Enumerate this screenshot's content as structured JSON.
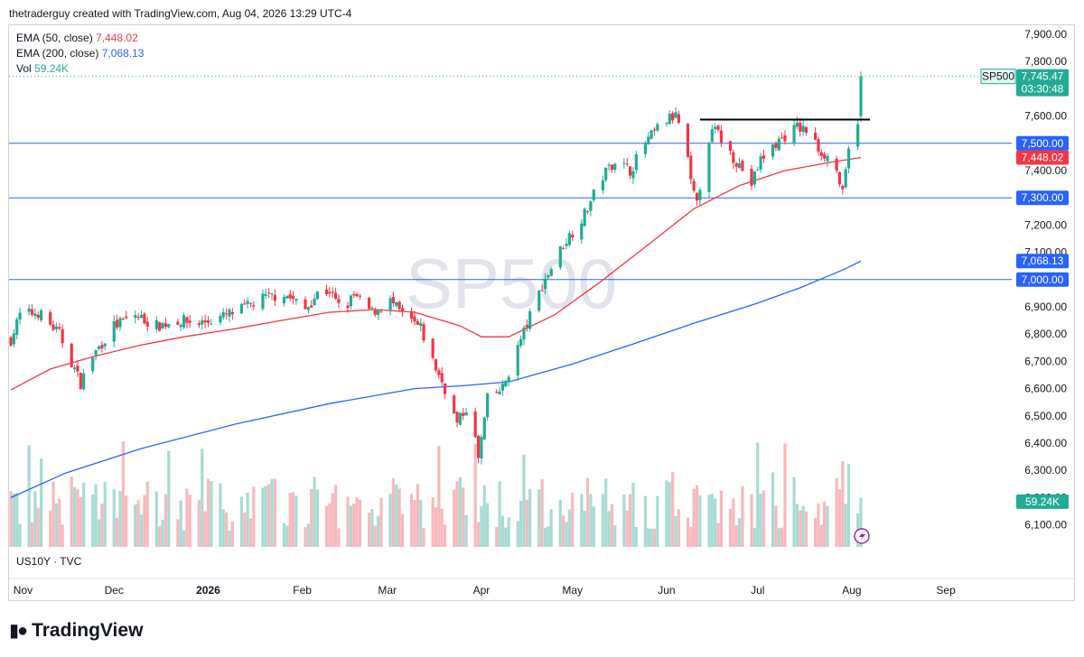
{
  "attribution": "thetraderguy created with TradingView.com, Aug 04, 2026 13:29 UTC-4",
  "legend": {
    "ema50_label": "EMA (50, close)",
    "ema50_value": "7,448.02",
    "ema200_label": "EMA (200, close)",
    "ema200_value": "7,068.13",
    "vol_label": "Vol",
    "vol_value": "59.24K"
  },
  "watermark": "SP500",
  "symbol_footer": "US10Y · TVC",
  "logo_text": "TradingView",
  "colors": {
    "up": "#22ab94",
    "down": "#f23645",
    "ema50": "#f23645",
    "ema200": "#2962ff",
    "hline": "#2962ff",
    "resistance": "#000000",
    "vol_up": "#a8dbd3",
    "vol_down": "#f7b9be"
  },
  "chart_data": {
    "type": "candlestick",
    "y_ticks": [
      "7,900.00",
      "7,800.00",
      "7,700.00",
      "7,600.00",
      "7,500.00",
      "7,400.00",
      "7,300.00",
      "7,200.00",
      "7,100.00",
      "7,000.00",
      "6,900.00",
      "6,800.00",
      "6,700.00",
      "6,600.00",
      "6,500.00",
      "6,400.00",
      "6,300.00",
      "6,200.00",
      "6,100.00"
    ],
    "ylim": [
      6050,
      7950
    ],
    "x_labels": [
      {
        "label": "Nov",
        "date": "2025-11-01"
      },
      {
        "label": "Dec",
        "date": "2025-12-01"
      },
      {
        "label": "2026",
        "date": "2026-01-01",
        "bold": true
      },
      {
        "label": "Feb",
        "date": "2026-02-01"
      },
      {
        "label": "Mar",
        "date": "2026-03-01"
      },
      {
        "label": "Apr",
        "date": "2026-04-01"
      },
      {
        "label": "May",
        "date": "2026-05-01"
      },
      {
        "label": "Jun",
        "date": "2026-06-01"
      },
      {
        "label": "Jul",
        "date": "2026-07-01"
      },
      {
        "label": "Aug",
        "date": "2026-08-01"
      },
      {
        "label": "Sep",
        "date": "2026-09-01"
      }
    ],
    "horizontal_levels": [
      {
        "price": 7500,
        "label": "7,500.00"
      },
      {
        "price": 7300,
        "label": "7,300.00"
      },
      {
        "price": 7000,
        "label": "7,000.00"
      }
    ],
    "resistance_line": {
      "start": "2026-06-12",
      "end": "2026-08-07",
      "price": 7587
    },
    "last_price": {
      "symbol": "SP500",
      "price": 7745.47,
      "label": "7,745.47",
      "countdown": "03:30:48"
    },
    "axis_tags": [
      {
        "label": "7,448.02",
        "price": 7448.02,
        "color": "#f23645"
      },
      {
        "label": "7,068.13",
        "price": 7068.13,
        "color": "#2962ff"
      },
      {
        "label": "59.24K",
        "price": 6185,
        "color": "#22ab94"
      }
    ],
    "ema50": [
      [
        "2025-10-28",
        6595
      ],
      [
        "2025-11-10",
        6672
      ],
      [
        "2025-11-25",
        6720
      ],
      [
        "2025-12-10",
        6760
      ],
      [
        "2025-12-24",
        6790
      ],
      [
        "2026-01-10",
        6820
      ],
      [
        "2026-01-25",
        6850
      ],
      [
        "2026-02-10",
        6880
      ],
      [
        "2026-02-25",
        6890
      ],
      [
        "2026-03-10",
        6880
      ],
      [
        "2026-03-25",
        6830
      ],
      [
        "2026-04-01",
        6790
      ],
      [
        "2026-04-10",
        6790
      ],
      [
        "2026-04-25",
        6870
      ],
      [
        "2026-05-10",
        6990
      ],
      [
        "2026-05-25",
        7120
      ],
      [
        "2026-06-10",
        7260
      ],
      [
        "2026-06-25",
        7345
      ],
      [
        "2026-07-10",
        7400
      ],
      [
        "2026-07-25",
        7430
      ],
      [
        "2026-08-04",
        7448
      ]
    ],
    "ema200": [
      [
        "2025-10-28",
        6200
      ],
      [
        "2025-11-15",
        6290
      ],
      [
        "2025-12-10",
        6380
      ],
      [
        "2026-01-10",
        6470
      ],
      [
        "2026-02-10",
        6545
      ],
      [
        "2026-03-10",
        6600
      ],
      [
        "2026-03-25",
        6610
      ],
      [
        "2026-04-10",
        6625
      ],
      [
        "2026-05-01",
        6690
      ],
      [
        "2026-05-20",
        6760
      ],
      [
        "2026-06-10",
        6840
      ],
      [
        "2026-06-30",
        6910
      ],
      [
        "2026-07-15",
        6970
      ],
      [
        "2026-07-30",
        7040
      ],
      [
        "2026-08-04",
        7068
      ]
    ],
    "price_path": [
      [
        "2025-10-28",
        6780
      ],
      [
        "2025-10-31",
        6870
      ],
      [
        "2025-11-06",
        6880
      ],
      [
        "2025-11-13",
        6800
      ],
      [
        "2025-11-20",
        6620
      ],
      [
        "2025-11-24",
        6720
      ],
      [
        "2025-12-01",
        6830
      ],
      [
        "2025-12-08",
        6870
      ],
      [
        "2025-12-15",
        6830
      ],
      [
        "2025-12-22",
        6850
      ],
      [
        "2025-12-29",
        6840
      ],
      [
        "2026-01-05",
        6860
      ],
      [
        "2026-01-12",
        6890
      ],
      [
        "2026-01-19",
        6930
      ],
      [
        "2026-01-26",
        6950
      ],
      [
        "2026-02-02",
        6890
      ],
      [
        "2026-02-06",
        6950
      ],
      [
        "2026-02-10",
        6960
      ],
      [
        "2026-02-14",
        6880
      ],
      [
        "2026-02-18",
        6940
      ],
      [
        "2026-02-24",
        6880
      ],
      [
        "2026-03-02",
        6920
      ],
      [
        "2026-03-06",
        6870
      ],
      [
        "2026-03-12",
        6820
      ],
      [
        "2026-03-16",
        6700
      ],
      [
        "2026-03-20",
        6600
      ],
      [
        "2026-03-24",
        6470
      ],
      [
        "2026-03-28",
        6550
      ],
      [
        "2026-03-31",
        6340
      ],
      [
        "2026-04-03",
        6560
      ],
      [
        "2026-04-08",
        6600
      ],
      [
        "2026-04-14",
        6780
      ],
      [
        "2026-04-21",
        6980
      ],
      [
        "2026-04-28",
        7130
      ],
      [
        "2026-05-05",
        7240
      ],
      [
        "2026-05-11",
        7380
      ],
      [
        "2026-05-15",
        7440
      ],
      [
        "2026-05-20",
        7400
      ],
      [
        "2026-05-25",
        7500
      ],
      [
        "2026-05-31",
        7580
      ],
      [
        "2026-06-04",
        7600
      ],
      [
        "2026-06-07",
        7520
      ],
      [
        "2026-06-09",
        7350
      ],
      [
        "2026-06-11",
        7270
      ],
      [
        "2026-06-14",
        7500
      ],
      [
        "2026-06-17",
        7550
      ],
      [
        "2026-06-21",
        7480
      ],
      [
        "2026-06-25",
        7420
      ],
      [
        "2026-06-29",
        7350
      ],
      [
        "2026-07-02",
        7440
      ],
      [
        "2026-07-08",
        7510
      ],
      [
        "2026-07-14",
        7560
      ],
      [
        "2026-07-18",
        7540
      ],
      [
        "2026-07-21",
        7480
      ],
      [
        "2026-07-24",
        7450
      ],
      [
        "2026-07-27",
        7400
      ],
      [
        "2026-07-29",
        7310
      ],
      [
        "2026-07-31",
        7470
      ],
      [
        "2026-08-03",
        7590
      ],
      [
        "2026-08-04",
        7745
      ]
    ]
  }
}
